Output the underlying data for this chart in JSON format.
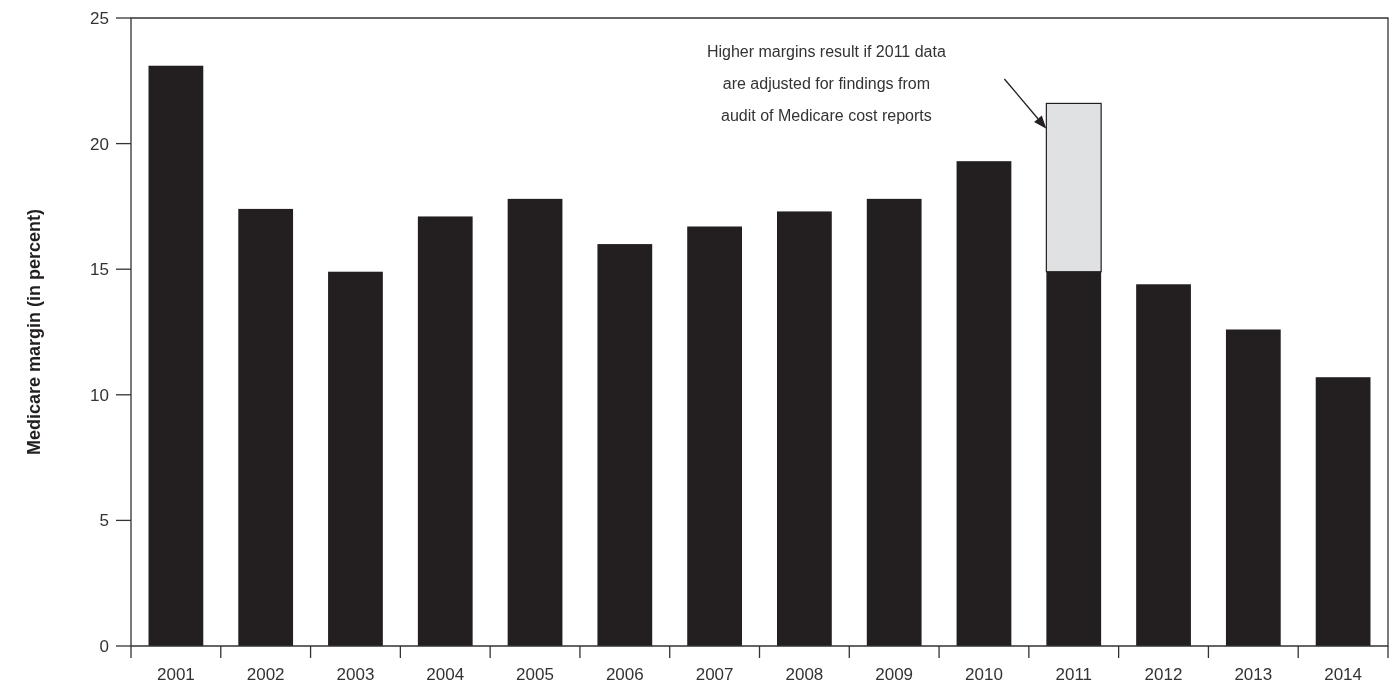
{
  "chart_data": {
    "type": "bar",
    "ylabel": "Medicare margin (in percent)",
    "categories": [
      "2001",
      "2002",
      "2003",
      "2004",
      "2005",
      "2006",
      "2007",
      "2008",
      "2009",
      "2010",
      "2011",
      "2012",
      "2013",
      "2014"
    ],
    "series": [
      {
        "color": "#231f20",
        "values": [
          23.1,
          17.4,
          14.9,
          17.1,
          17.8,
          16.0,
          16.7,
          17.3,
          17.8,
          19.3,
          14.9,
          14.4,
          12.6,
          10.7
        ]
      },
      {
        "color": "#e0e1e3",
        "values": [
          null,
          null,
          null,
          null,
          null,
          null,
          null,
          null,
          null,
          null,
          6.7,
          null,
          null,
          null
        ]
      }
    ],
    "stacked": true,
    "ylim": [
      0,
      25
    ],
    "yticks": [
      0,
      5,
      10,
      15,
      20,
      25
    ],
    "annotations": [
      "Higher margins result if 2011 data\nare adjusted for findings from\naudit of Medicare cost reports"
    ]
  }
}
